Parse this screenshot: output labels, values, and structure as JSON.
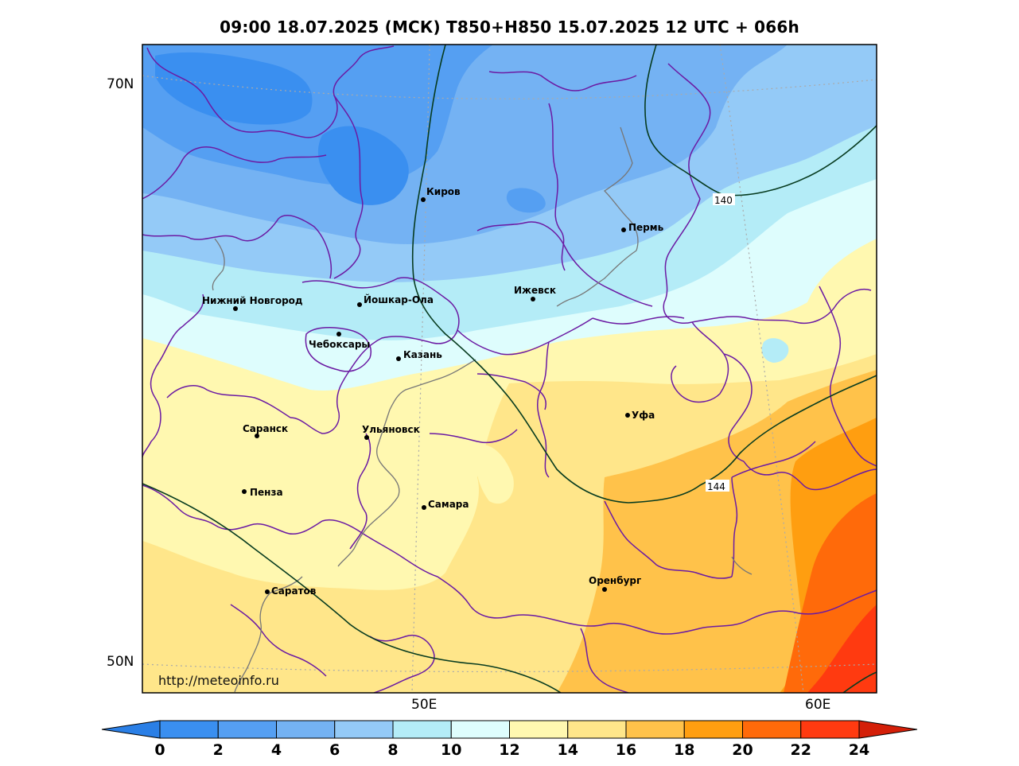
{
  "title": "09:00 18.07.2025 (МСК) T850+H850 15.07.2025 12 UTC + 066h",
  "map": {
    "lat_labels": [
      "70N",
      "50N"
    ],
    "lon_labels": [
      "50E",
      "60E"
    ],
    "watermark": "http://meteoinfo.ru",
    "cities": [
      {
        "name": "Киров"
      },
      {
        "name": "Пермь"
      },
      {
        "name": "Нижний Новгород"
      },
      {
        "name": "Йошкар-Ола"
      },
      {
        "name": "Ижевск"
      },
      {
        "name": "Чебоксары"
      },
      {
        "name": "Казань"
      },
      {
        "name": "Уфа"
      },
      {
        "name": "Саранск"
      },
      {
        "name": "Ульяновск"
      },
      {
        "name": "Пенза"
      },
      {
        "name": "Самара"
      },
      {
        "name": "Оренбург"
      },
      {
        "name": "Саратов"
      }
    ],
    "isohypse_labels": [
      "140",
      "144"
    ]
  },
  "colorbar": {
    "ticks": [
      "0",
      "2",
      "4",
      "6",
      "8",
      "10",
      "12",
      "14",
      "16",
      "18",
      "20",
      "22",
      "24"
    ],
    "colors": {
      "under": "#2a7fe6",
      "bins": [
        "#3a8ff0",
        "#559ff2",
        "#74b2f3",
        "#94caf7",
        "#b4ecf7",
        "#defdfd",
        "#fff8b0",
        "#ffe68a",
        "#ffc24a",
        "#ff9e10",
        "#ff6a0a",
        "#ff3a10"
      ],
      "over": "#d41f08"
    }
  }
}
